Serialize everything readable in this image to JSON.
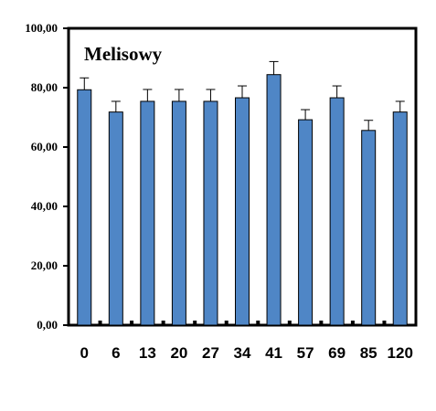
{
  "chart_data": {
    "type": "bar",
    "title": "Melisowy",
    "xlabel": "",
    "ylabel": "",
    "categories": [
      "0",
      "6",
      "13",
      "20",
      "27",
      "34",
      "41",
      "57",
      "69",
      "85",
      "120"
    ],
    "values": [
      79.3,
      71.8,
      75.4,
      75.4,
      75.4,
      76.6,
      84.4,
      69.2,
      76.6,
      65.6,
      71.8
    ],
    "errors": [
      4.0,
      3.6,
      4.0,
      4.0,
      4.0,
      4.0,
      4.4,
      3.4,
      4.0,
      3.4,
      3.6
    ],
    "ylim": [
      0,
      100
    ],
    "yticks": [
      0,
      20,
      40,
      60,
      80,
      100
    ],
    "ytick_labels": [
      "0,00",
      "20,00",
      "40,00",
      "60,00",
      "80,00",
      "100,00"
    ],
    "grid": false,
    "legend": "none",
    "colors": {
      "bar_fill": "#4F86C6",
      "bar_stroke": "#000000",
      "axis": "#000000"
    }
  }
}
